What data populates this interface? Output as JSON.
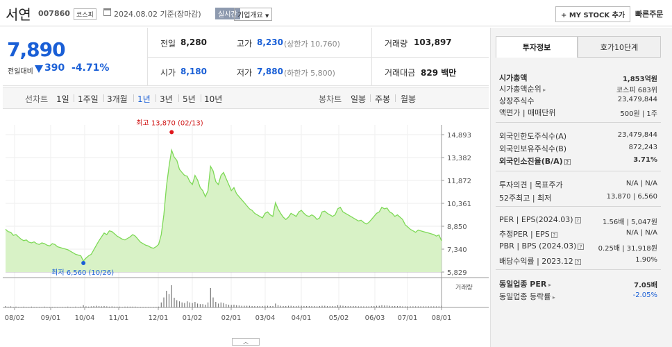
{
  "header": {
    "name": "서연",
    "code": "007860",
    "market": "코스피",
    "date": "2024.08.02",
    "basis": "기준(장마감)",
    "realtime": "실시간",
    "corp_info": "기업개요",
    "my_stock": "+ MY STOCK 추가",
    "quick_order": "빠른주문"
  },
  "price": {
    "current": "7,890",
    "change_label": "전일대비",
    "change": "390",
    "change_pct": "-4.71%",
    "direction": "down"
  },
  "quote": {
    "prev_label": "전일",
    "prev": "8,280",
    "high_label": "고가",
    "high": "8,230",
    "upper_label": "(상한가",
    "upper": "10,760)",
    "vol_label": "거래량",
    "vol": "103,897",
    "open_label": "시가",
    "open": "8,180",
    "low_label": "저가",
    "low": "7,880",
    "lower_label": "(하한가",
    "lower": "5,800)",
    "amt_label": "거래대금",
    "amt": "829",
    "amt_unit": "백만"
  },
  "periods": {
    "line_label": "선차트",
    "line": [
      "1일",
      "1주일",
      "3개월",
      "1년",
      "3년",
      "5년",
      "10년"
    ],
    "active": "1년",
    "candle_label": "봉차트",
    "candle": [
      "일봉",
      "주봉",
      "월봉"
    ]
  },
  "chart_data": {
    "type": "area",
    "ylim": [
      5829,
      14893
    ],
    "yticks": [
      "14,893",
      "13,382",
      "11,872",
      "10,361",
      "8,850",
      "7,340",
      "5,829"
    ],
    "xticks": [
      "08/02",
      "09/01",
      "10/04",
      "11/01",
      "12/01",
      "01/02",
      "02/01",
      "03/04",
      "04/01",
      "05/02",
      "06/03",
      "07/01",
      "08/01"
    ],
    "max_label": "최고 13,870 (02/13)",
    "min_label": "최저 6,560 (10/26)",
    "volume_label": "거래량",
    "series": [
      {
        "values": [
          8650,
          8500,
          8450,
          8250,
          8300,
          8150,
          8000,
          7900,
          7950,
          7800,
          7750,
          7820,
          7700,
          7650,
          7750,
          7700,
          7600,
          7550,
          7700,
          7650,
          7500,
          7450,
          7400,
          7350,
          7300,
          7200,
          7100,
          7000,
          6950,
          6900,
          6560,
          6750,
          6900,
          7000,
          7300,
          7600,
          7900,
          8150,
          8400,
          8300,
          8550,
          8500,
          8350,
          8200,
          8100,
          8000,
          7950,
          8050,
          8150,
          8300,
          8200,
          8000,
          7800,
          7700,
          7600,
          7550,
          7450,
          7400,
          7500,
          7650,
          8300,
          9600,
          11500,
          12800,
          13870,
          13400,
          13200,
          12600,
          12400,
          12200,
          12150,
          11800,
          11600,
          12200,
          11900,
          11400,
          11200,
          10800,
          11200,
          12800,
          12500,
          11800,
          11600,
          12200,
          12400,
          12000,
          11600,
          11200,
          11400,
          11000,
          10800,
          10600,
          10400,
          10200,
          10000,
          9900,
          9700,
          9600,
          9500,
          9400,
          9700,
          9800,
          9600,
          9500,
          10400,
          10000,
          9700,
          9450,
          9300,
          9450,
          9700,
          9600,
          9500,
          9800,
          9900,
          9700,
          9550,
          9500,
          9600,
          9500,
          9300,
          9400,
          9800,
          9850,
          9700,
          9600,
          9500,
          9600,
          10000,
          10100,
          9800,
          9700,
          9600,
          9500,
          9400,
          9300,
          9200,
          9250,
          9100,
          9000,
          9100,
          9300,
          9500,
          9700,
          9800,
          10100,
          10000,
          10050,
          9800,
          9700,
          9500,
          9600,
          9450,
          9300,
          8950,
          8800,
          8650,
          8550,
          8450,
          8600,
          8550,
          8500,
          8450,
          8400,
          8350,
          8300,
          8200,
          8280,
          7890
        ],
        "volume": [
          5,
          3,
          4,
          2,
          3,
          2,
          2,
          3,
          2,
          2,
          3,
          2,
          2,
          2,
          2,
          3,
          2,
          2,
          2,
          2,
          2,
          2,
          2,
          2,
          3,
          2,
          2,
          3,
          2,
          3,
          8,
          4,
          3,
          4,
          5,
          6,
          5,
          4,
          5,
          4,
          3,
          4,
          3,
          3,
          3,
          2,
          3,
          3,
          3,
          3,
          3,
          2,
          2,
          2,
          2,
          2,
          2,
          2,
          2,
          3,
          18,
          36,
          60,
          48,
          80,
          35,
          26,
          22,
          18,
          16,
          22,
          18,
          16,
          20,
          14,
          12,
          12,
          10,
          18,
          70,
          36,
          20,
          14,
          18,
          16,
          12,
          10,
          9,
          10,
          8,
          7,
          6,
          6,
          6,
          6,
          5,
          5,
          5,
          5,
          5,
          6,
          6,
          5,
          5,
          14,
          8,
          6,
          5,
          5,
          6,
          6,
          5,
          5,
          6,
          6,
          5,
          5,
          5,
          5,
          5,
          4,
          5,
          6,
          6,
          5,
          5,
          5,
          5,
          8,
          7,
          6,
          5,
          5,
          5,
          5,
          5,
          4,
          4,
          4,
          4,
          4,
          5,
          5,
          6,
          6,
          8,
          7,
          7,
          6,
          5,
          5,
          5,
          5,
          4,
          4,
          4,
          4,
          4,
          4,
          4,
          4,
          4,
          4,
          4,
          4,
          4,
          4,
          4,
          6
        ]
      }
    ]
  },
  "tabs": {
    "invest": "투자정보",
    "hoga": "호가10단계"
  },
  "invest": {
    "mcap_label": "시가총액",
    "mcap": "1,853억원",
    "mcap_rank_label": "시가총액순위",
    "mcap_rank": "코스피 683위",
    "listed_label": "상장주식수",
    "listed": "23,479,844",
    "face_label": "액면가 | 매매단위",
    "face": "500원 | 1주",
    "for_limit_label": "외국인한도주식수(A)",
    "for_limit": "23,479,844",
    "for_hold_label": "외국인보유주식수(B)",
    "for_hold": "872,243",
    "for_rate_label": "외국인소진율(B/A)",
    "for_rate": "3.71%",
    "opinion_label": "투자의견 | 목표주가",
    "opinion": "N/A | N/A",
    "w52_label": "52주최고 | 최저",
    "w52": "13,870 | 6,560",
    "per_label": "PER | EPS(2024.03)",
    "per": "1.56배 | 5,047원",
    "eper_label": "추정PER | EPS",
    "eper": "N/A | N/A",
    "pbr_label": "PBR | BPS (2024.03)",
    "pbr": "0.25배 | 31,918원",
    "div_label": "배당수익률 | 2023.12",
    "div": "1.90%",
    "sector_per_label": "동일업종 PER",
    "sector_per": "7.05배",
    "sector_rate_label": "동일업종 등락률",
    "sector_rate": "-2.05%"
  }
}
